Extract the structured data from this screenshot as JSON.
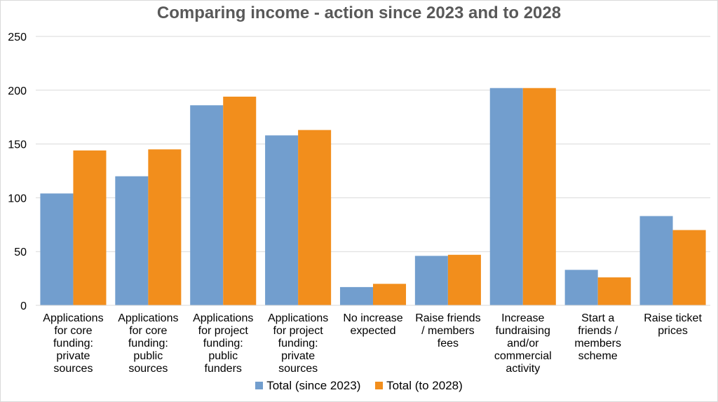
{
  "chart_data": {
    "type": "bar",
    "title": "Comparing income - action since 2023 and to 2028",
    "xlabel": "",
    "ylabel": "",
    "ylim": [
      0,
      250
    ],
    "yticks": [
      0,
      50,
      100,
      150,
      200,
      250
    ],
    "grid": true,
    "legend_position": "bottom",
    "categories": [
      [
        "Applications",
        "for core",
        "funding:",
        "private",
        "sources"
      ],
      [
        "Applications",
        "for core",
        "funding:",
        "public",
        "sources"
      ],
      [
        "Applications",
        "for project",
        "funding:",
        "public",
        "funders"
      ],
      [
        "Applications",
        "for project",
        "funding:",
        "private",
        "sources"
      ],
      [
        "No increase",
        "expected"
      ],
      [
        "Raise friends",
        "/ members",
        "fees"
      ],
      [
        "Increase",
        "fundraising",
        "and/or",
        "commercial",
        "activity"
      ],
      [
        "Start a",
        "friends /",
        "members",
        "scheme"
      ],
      [
        "Raise ticket",
        "prices"
      ]
    ],
    "series": [
      {
        "name": "Total (since 2023)",
        "color": "#729ECE",
        "values": [
          104,
          120,
          186,
          158,
          17,
          46,
          202,
          33,
          83
        ]
      },
      {
        "name": "Total (to 2028)",
        "color": "#F28E1C",
        "values": [
          144,
          145,
          194,
          163,
          20,
          47,
          202,
          26,
          70
        ]
      }
    ]
  }
}
